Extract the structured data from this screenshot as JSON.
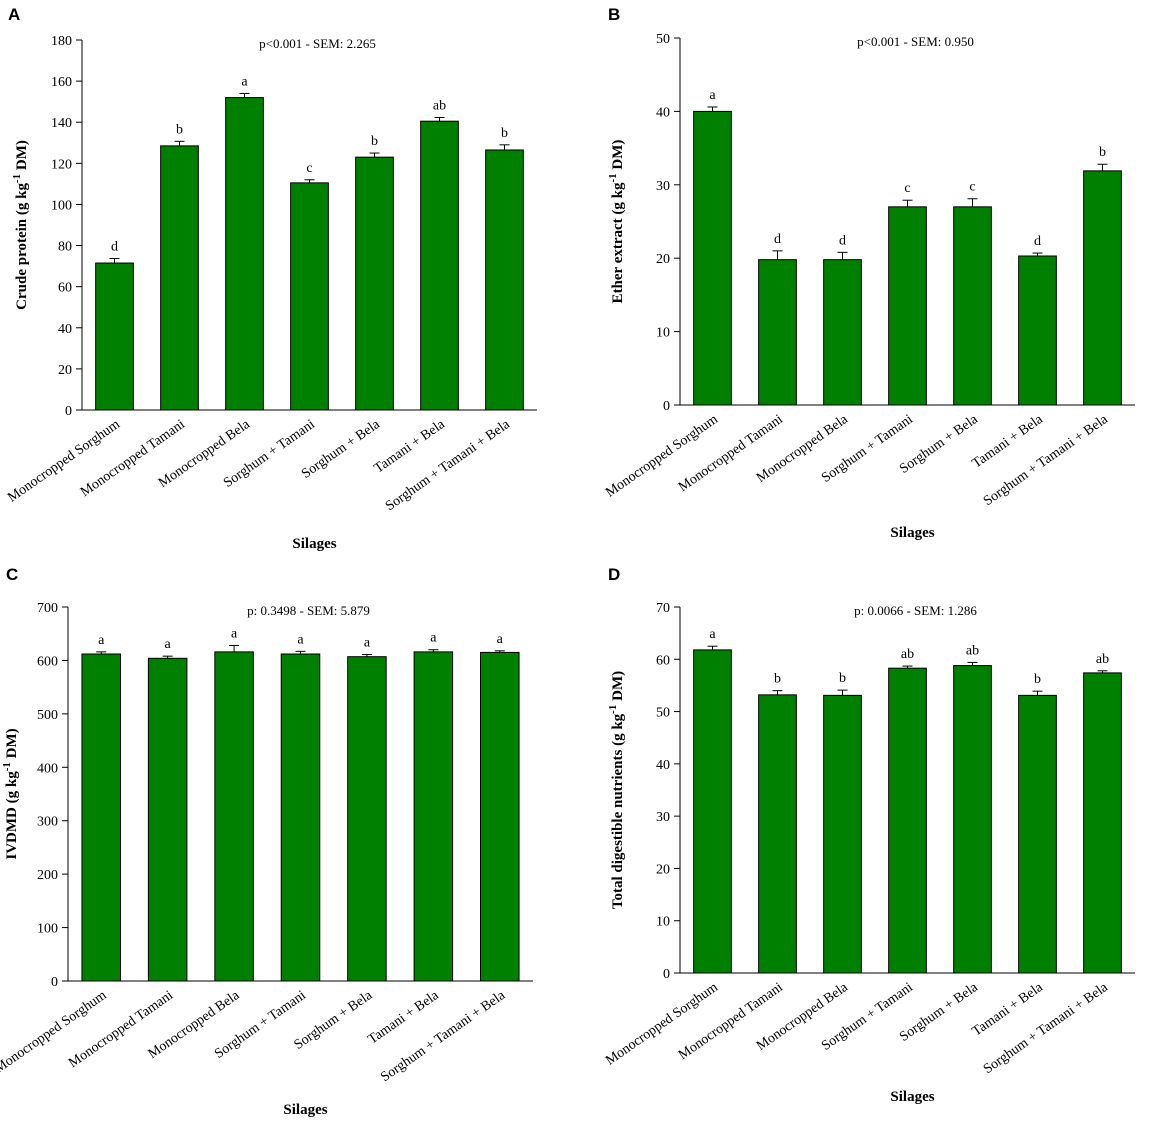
{
  "chart_data": [
    {
      "panel": "A",
      "type": "bar",
      "categories": [
        "Monocropped Sorghum",
        "Monocropped Tamani",
        "Monocropped Bela",
        "Sorghum + Tamani",
        "Sorghum + Bela",
        "Tamani + Bela",
        "Sorghum + Tamani + Bela"
      ],
      "values": [
        71.5,
        128.5,
        152,
        110.5,
        123,
        140.5,
        126.5
      ],
      "errors": [
        2.2,
        2.2,
        2.0,
        1.5,
        2.0,
        1.8,
        2.5
      ],
      "letters": [
        "d",
        "b",
        "a",
        "c",
        "b",
        "ab",
        "b"
      ],
      "stat_text": "p<0.001 - SEM: 2.265",
      "ylabel": "Crude protein  (g kg",
      "ylabel_sup": "-1",
      "ylabel_tail": " DM)",
      "xlabel": "Silages",
      "ylim": [
        0,
        180
      ],
      "ytick_step": 20
    },
    {
      "panel": "B",
      "type": "bar",
      "categories": [
        "Monocropped Sorghum",
        "Monocropped Tamani",
        "Monocropped Bela",
        "Sorghum + Tamani",
        "Sorghum + Bela",
        "Tamani + Bela",
        "Sorghum + Tamani + Bela"
      ],
      "values": [
        40,
        19.8,
        19.8,
        27,
        27,
        20.3,
        31.9
      ],
      "errors": [
        0.6,
        1.2,
        1.0,
        0.9,
        1.1,
        0.4,
        0.9
      ],
      "letters": [
        "a",
        "d",
        "d",
        "c",
        "c",
        "d",
        "b"
      ],
      "stat_text": "p<0.001 - SEM: 0.950",
      "ylabel": "Ether extract (g kg",
      "ylabel_sup": "-1",
      "ylabel_tail": " DM)",
      "xlabel": "Silages",
      "ylim": [
        0,
        50
      ],
      "ytick_step": 10
    },
    {
      "panel": "C",
      "type": "bar",
      "categories": [
        "Monocropped Sorghum",
        "Monocropped Tamani",
        "Monocropped Bela",
        "Sorghum + Tamani",
        "Sorghum + Bela",
        "Tamani + Bela",
        "Sorghum + Tamani + Bela"
      ],
      "values": [
        612,
        604,
        616,
        612,
        607,
        616,
        615
      ],
      "errors": [
        4,
        4,
        12,
        5,
        4,
        4,
        3
      ],
      "letters": [
        "a",
        "a",
        "a",
        "a",
        "a",
        "a",
        "a"
      ],
      "stat_text": "p: 0.3498 - SEM: 5.879",
      "ylabel": "IVDMD (g kg",
      "ylabel_sup": "-1",
      "ylabel_tail": " DM)",
      "xlabel": "Silages",
      "ylim": [
        0,
        700
      ],
      "ytick_step": 100
    },
    {
      "panel": "D",
      "type": "bar",
      "categories": [
        "Monocropped Sorghum",
        "Monocropped Tamani",
        "Monocropped Bela",
        "Sorghum + Tamani",
        "Sorghum + Bela",
        "Tamani + Bela",
        "Sorghum + Tamani + Bela"
      ],
      "values": [
        61.8,
        53.2,
        53.1,
        58.3,
        58.8,
        53.1,
        57.4
      ],
      "errors": [
        0.7,
        0.8,
        1.0,
        0.4,
        0.6,
        0.8,
        0.4
      ],
      "letters": [
        "a",
        "b",
        "b",
        "ab",
        "ab",
        "b",
        "ab"
      ],
      "stat_text": "p: 0.0066 - SEM: 1.286",
      "ylabel": "Total digestible nutrients (g kg",
      "ylabel_sup": "-1",
      "ylabel_tail": " DM)",
      "xlabel": "Silages",
      "ylim": [
        0,
        70
      ],
      "ytick_step": 10
    }
  ]
}
